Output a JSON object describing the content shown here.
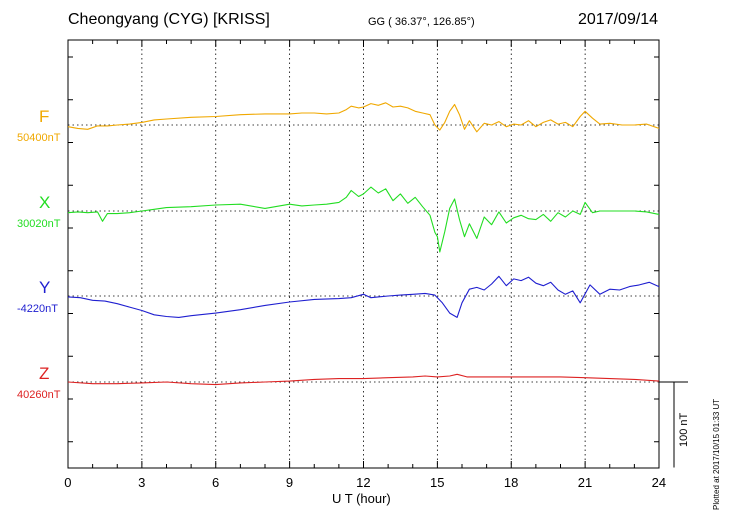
{
  "header": {
    "station": "Cheongyang (CYG)  [KRISS]",
    "coords": "GG ( 36.37°, 126.85°)",
    "date": "2017/09/14"
  },
  "footer_note": "Plotted at 2017/10/15 01:33 UT",
  "scale_bar": {
    "label": "100 nT",
    "nT": 100
  },
  "chart_data": {
    "type": "line",
    "xlabel": "U T (hour)",
    "xlim": [
      0,
      24
    ],
    "xticks": [
      0,
      3,
      6,
      9,
      12,
      15,
      18,
      21,
      24
    ],
    "grid": true,
    "series": [
      {
        "name": "F",
        "baseline_label": "50400nT",
        "baseline": 50400,
        "color": "#f0a800",
        "x": [
          0,
          0.4,
          0.8,
          1.2,
          1.6,
          2,
          2.5,
          3,
          3.5,
          4,
          5,
          6,
          7,
          8,
          9,
          9.5,
          10,
          10.5,
          11,
          11.3,
          11.5,
          11.8,
          12,
          12.3,
          12.6,
          12.9,
          13.2,
          13.5,
          13.8,
          14.1,
          14.4,
          14.7,
          14.9,
          15.1,
          15.3,
          15.5,
          15.7,
          15.9,
          16.1,
          16.3,
          16.6,
          16.9,
          17.2,
          17.5,
          17.8,
          18.1,
          18.4,
          18.7,
          19,
          19.3,
          19.6,
          19.9,
          20.2,
          20.5,
          20.8,
          21,
          21.3,
          21.6,
          22,
          22.5,
          23,
          23.5,
          24
        ],
        "values": [
          50398,
          50396,
          50395,
          50399,
          50399,
          50400,
          50401,
          50403,
          50406,
          50407,
          50409,
          50410,
          50412,
          50413,
          50413,
          50414,
          50414,
          50413,
          50414,
          50418,
          50422,
          50420,
          50421,
          50425,
          50423,
          50426,
          50421,
          50422,
          50420,
          50416,
          50414,
          50412,
          50400,
          50394,
          50403,
          50416,
          50424,
          50412,
          50395,
          50405,
          50392,
          50402,
          50400,
          50404,
          50398,
          50401,
          50400,
          50405,
          50398,
          50403,
          50406,
          50401,
          50403,
          50398,
          50410,
          50416,
          50408,
          50401,
          50402,
          50400,
          50400,
          50401,
          50396
        ]
      },
      {
        "name": "X",
        "baseline_label": "30020nT",
        "baseline": 30020,
        "color": "#22dd22",
        "x": [
          0,
          0.4,
          0.8,
          1.2,
          1.4,
          1.6,
          2,
          2.5,
          3,
          3.5,
          4,
          5,
          6,
          7,
          8,
          9,
          9.5,
          10,
          10.5,
          11,
          11.3,
          11.5,
          11.8,
          12,
          12.3,
          12.6,
          12.9,
          13.2,
          13.5,
          13.8,
          14.1,
          14.4,
          14.7,
          14.9,
          15,
          15.1,
          15.3,
          15.5,
          15.7,
          15.9,
          16.1,
          16.3,
          16.6,
          16.9,
          17.2,
          17.5,
          17.8,
          18.1,
          18.4,
          18.7,
          19,
          19.3,
          19.6,
          19.9,
          20.2,
          20.5,
          20.8,
          21,
          21.3,
          21.6,
          22,
          22.5,
          23,
          23.5,
          24
        ],
        "values": [
          30018,
          30019,
          30018,
          30019,
          30008,
          30017,
          30017,
          30018,
          30020,
          30022,
          30024,
          30025,
          30027,
          30028,
          30023,
          30028,
          30026,
          30027,
          30028,
          30030,
          30036,
          30044,
          30037,
          30040,
          30048,
          30041,
          30046,
          30032,
          30040,
          30029,
          30036,
          30025,
          30015,
          29995,
          29990,
          29972,
          29996,
          30023,
          30034,
          30010,
          29990,
          30005,
          29988,
          30013,
          30004,
          30019,
          30006,
          30012,
          30015,
          30011,
          30010,
          30016,
          30008,
          30018,
          30013,
          30020,
          30016,
          30030,
          30018,
          30020,
          30020,
          30020,
          30020,
          30019,
          30016
        ]
      },
      {
        "name": "Y",
        "baseline_label": "-4220nT",
        "baseline": -4220,
        "color": "#1f1fd0",
        "x": [
          0,
          0.5,
          1,
          1.5,
          2,
          2.5,
          3,
          3.5,
          4,
          4.5,
          5,
          6,
          7,
          8,
          9,
          10,
          11,
          11.5,
          12,
          12.3,
          12.6,
          13,
          13.5,
          14,
          14.5,
          14.9,
          15.2,
          15.5,
          15.8,
          16,
          16.3,
          16.6,
          16.9,
          17.2,
          17.5,
          17.8,
          18.1,
          18.4,
          18.7,
          19,
          19.3,
          19.6,
          19.9,
          20.2,
          20.5,
          20.8,
          21.2,
          21.6,
          22,
          22.4,
          22.8,
          23.2,
          23.6,
          24
        ],
        "values": [
          -4221,
          -4222,
          -4225,
          -4226,
          -4229,
          -4233,
          -4237,
          -4242,
          -4244,
          -4245,
          -4243,
          -4240,
          -4236,
          -4231,
          -4227,
          -4224,
          -4223,
          -4222,
          -4218,
          -4222,
          -4221,
          -4220,
          -4219,
          -4218,
          -4217,
          -4219,
          -4228,
          -4240,
          -4245,
          -4228,
          -4212,
          -4210,
          -4213,
          -4206,
          -4197,
          -4208,
          -4200,
          -4202,
          -4198,
          -4205,
          -4208,
          -4204,
          -4213,
          -4218,
          -4214,
          -4228,
          -4207,
          -4218,
          -4212,
          -4213,
          -4209,
          -4207,
          -4204,
          -4209
        ]
      },
      {
        "name": "Z",
        "baseline_label": "40260nT",
        "baseline": 40260,
        "color": "#dd2222",
        "x": [
          0,
          1,
          2,
          3,
          4,
          5,
          6,
          7,
          8,
          9,
          10,
          11,
          12,
          13,
          14,
          14.5,
          15,
          15.5,
          15.8,
          16.2,
          17,
          18,
          19,
          20,
          21,
          22,
          23,
          24
        ],
        "values": [
          40260,
          40258,
          40258,
          40259,
          40260,
          40258,
          40257,
          40259,
          40260,
          40261,
          40263,
          40264,
          40264,
          40265,
          40266,
          40267,
          40266,
          40267,
          40269,
          40266,
          40266,
          40266,
          40266,
          40266,
          40265,
          40264,
          40263,
          40261
        ]
      }
    ]
  }
}
